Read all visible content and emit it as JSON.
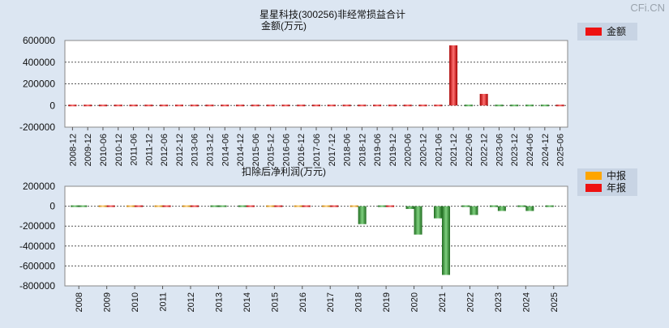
{
  "watermark": "CFi.CN",
  "charts": [
    {
      "title": "星星科技(300256)非经常损益合计",
      "ylabel": "金额(万元)",
      "legend": [
        {
          "label": "金额",
          "color": "#ee1111"
        }
      ]
    },
    {
      "title": "扣除后净利润(万元)",
      "legend": [
        {
          "label": "中报",
          "color": "#ffa500"
        },
        {
          "label": "年报",
          "color": "#ee1111"
        }
      ]
    }
  ],
  "chart_data": [
    {
      "type": "bar",
      "title": "星星科技(300256)非经常损益合计",
      "ylabel": "金额(万元)",
      "ylim": [
        -200000,
        600000
      ],
      "yticks": [
        "600000",
        "400000",
        "200000",
        "0",
        "-200000"
      ],
      "grid": true,
      "legend_position": "top-right",
      "series": [
        {
          "name": "金额",
          "color": "#ee1111"
        }
      ],
      "categories": [
        "2008-12",
        "2009-12",
        "2010-06",
        "2010-12",
        "2011-06",
        "2011-12",
        "2012-06",
        "2012-12",
        "2013-06",
        "2013-12",
        "2014-06",
        "2014-12",
        "2015-06",
        "2015-12",
        "2016-06",
        "2016-12",
        "2017-06",
        "2017-12",
        "2018-06",
        "2018-12",
        "2019-06",
        "2019-12",
        "2020-06",
        "2020-12",
        "2021-06",
        "2021-12",
        "2022-06",
        "2022-12",
        "2023-06",
        "2023-12",
        "2024-06",
        "2024-12",
        "2025-06"
      ],
      "values": [
        3000,
        3000,
        500,
        2000,
        500,
        2000,
        2000,
        3000,
        2000,
        3000,
        3000,
        3000,
        3000,
        3000,
        3000,
        3000,
        3000,
        3000,
        3000,
        4000,
        5000,
        12000,
        500,
        500,
        1000,
        555000,
        -3000,
        107000,
        -1000,
        -500,
        -1000,
        -4000,
        2000
      ]
    },
    {
      "type": "bar",
      "title": "扣除后净利润(万元)",
      "ylim": [
        -800000,
        200000
      ],
      "yticks": [
        "200000",
        "0",
        "-200000",
        "-400000",
        "-600000",
        "-800000"
      ],
      "grid": true,
      "legend_position": "top-right",
      "series_names": [
        "中报",
        "年报"
      ],
      "categories": [
        "2008",
        "2009",
        "2010",
        "2011",
        "2012",
        "2013",
        "2014",
        "2015",
        "2016",
        "2017",
        "2018",
        "2019",
        "2020",
        "2021",
        "2022",
        "2023",
        "2024",
        "2025"
      ],
      "interim": [
        -3000,
        2000,
        3000,
        5000,
        10000,
        -4000,
        -3000,
        11000,
        13000,
        10000,
        10000,
        -3000,
        -28000,
        -122000,
        -5000,
        -15000,
        -13000,
        -12000
      ],
      "annual": [
        -5000,
        15000,
        14000,
        16000,
        14000,
        -10000,
        11000,
        16000,
        16000,
        11000,
        -180000,
        15000,
        -285000,
        -690000,
        -88000,
        -48000,
        -48000,
        null
      ]
    }
  ]
}
